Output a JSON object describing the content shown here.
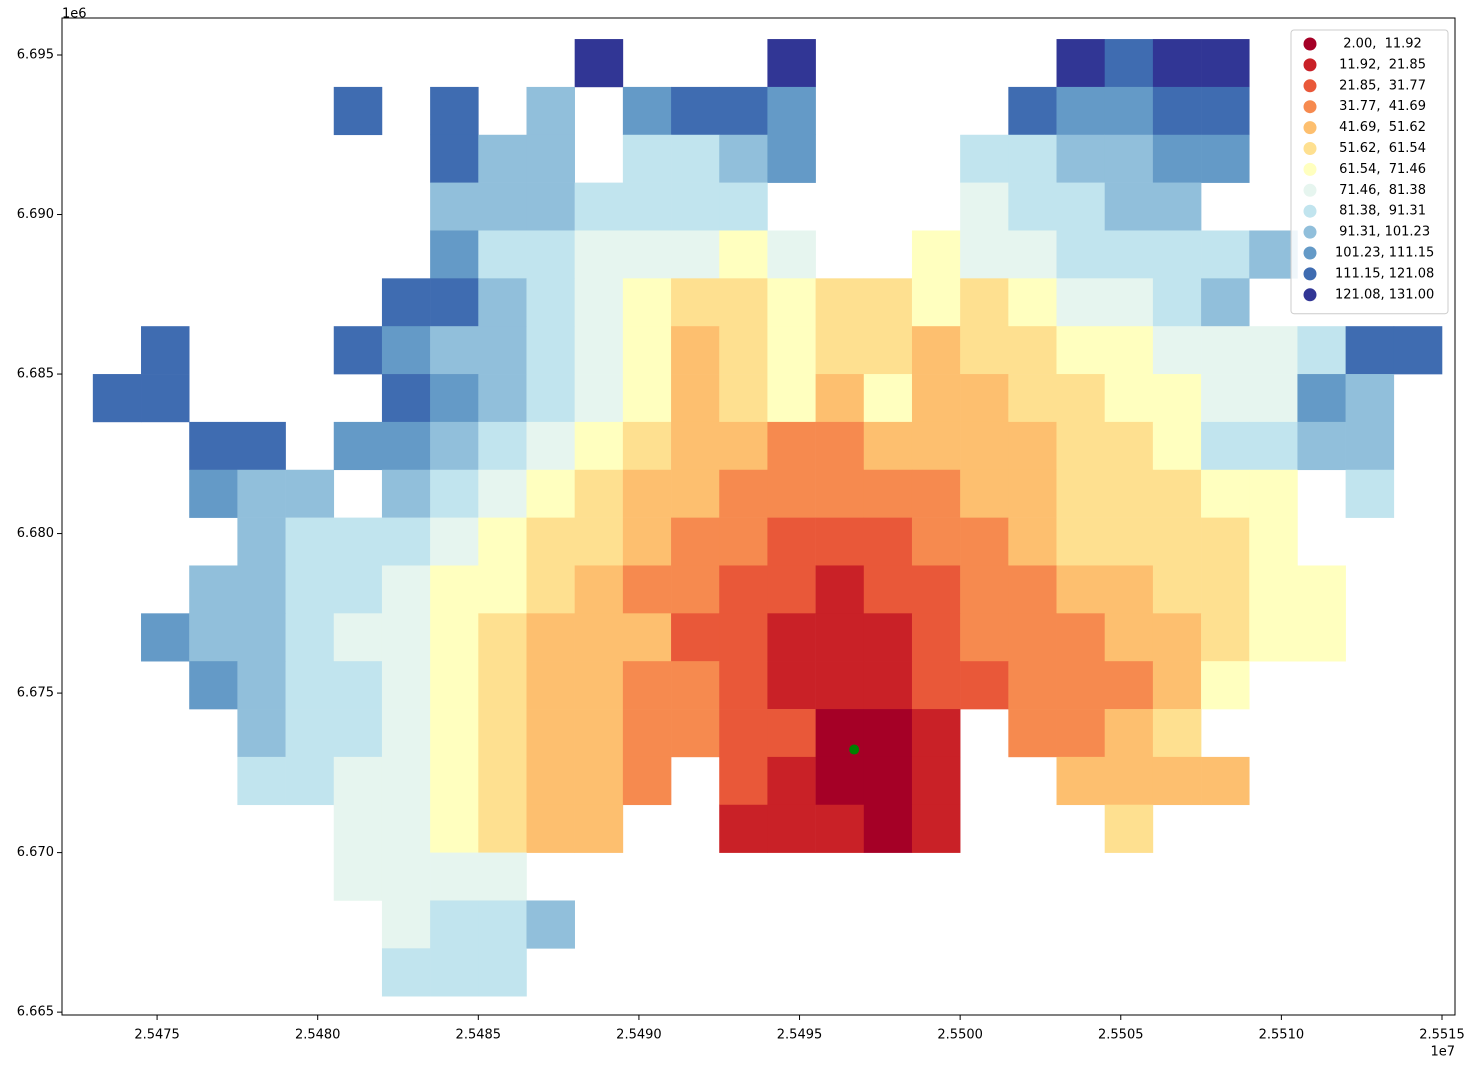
{
  "chart_data": {
    "type": "map",
    "xlim": [
      25472040,
      25515405
    ],
    "ylim": [
      6664910,
      6696160
    ],
    "xticks": [
      {
        "value": 25475000,
        "label": "2.5475"
      },
      {
        "value": 25480000,
        "label": "2.5480"
      },
      {
        "value": 25485000,
        "label": "2.5485"
      },
      {
        "value": 25490000,
        "label": "2.5490"
      },
      {
        "value": 25495000,
        "label": "2.5495"
      },
      {
        "value": 25500000,
        "label": "2.5500"
      },
      {
        "value": 25505000,
        "label": "2.5505"
      },
      {
        "value": 25510000,
        "label": "2.5510"
      },
      {
        "value": 25515000,
        "label": "2.5515"
      }
    ],
    "yticks": [
      {
        "value": 6665000,
        "label": "6.665"
      },
      {
        "value": 6670000,
        "label": "6.670"
      },
      {
        "value": 6675000,
        "label": "6.675"
      },
      {
        "value": 6680000,
        "label": "6.680"
      },
      {
        "value": 6685000,
        "label": "6.685"
      },
      {
        "value": 6690000,
        "label": "6.690"
      },
      {
        "value": 6695000,
        "label": "6.695"
      }
    ],
    "x_offset_label": "1e7",
    "y_offset_label": "1e6",
    "bins": [
      2.0,
      11.92,
      21.85,
      31.77,
      41.69,
      51.62,
      61.54,
      71.46,
      81.38,
      91.31,
      101.23,
      111.15,
      121.08,
      131.0
    ],
    "legend": [
      {
        "label": "  2.00,  11.92",
        "color": "#a50026"
      },
      {
        "label": " 11.92,  21.85",
        "color": "#c92127"
      },
      {
        "label": " 21.85,  31.77",
        "color": "#e95839"
      },
      {
        "label": " 31.77,  41.69",
        "color": "#f68a4f"
      },
      {
        "label": " 41.69,  51.62",
        "color": "#fdbf6f"
      },
      {
        "label": " 51.62,  61.54",
        "color": "#fee090"
      },
      {
        "label": " 61.54,  71.46",
        "color": "#ffffbf"
      },
      {
        "label": " 71.46,  81.38",
        "color": "#e6f5ef"
      },
      {
        "label": " 81.38,  91.31",
        "color": "#c1e4ee"
      },
      {
        "label": " 91.31, 101.23",
        "color": "#91bfdb"
      },
      {
        "label": "101.23, 111.15",
        "color": "#649ac7"
      },
      {
        "label": "111.15, 121.08",
        "color": "#3f6cb1"
      },
      {
        "label": "121.08, 131.00",
        "color": "#313695"
      }
    ],
    "legend_position": "upper right",
    "cell_x": [
      25473750,
      25475250,
      25476750,
      25478250,
      25479750,
      25481250,
      25482750,
      25484250,
      25485750,
      25487250,
      25488750,
      25490250,
      25491750,
      25493250,
      25494750,
      25496250,
      25497750,
      25499250,
      25500750,
      25502250,
      25503750,
      25505250,
      25506750,
      25508250,
      25509750,
      25511250,
      25512750,
      25514250
    ],
    "cell_y": [
      6694750,
      6693250,
      6691750,
      6690250,
      6688750,
      6687250,
      6685750,
      6684250,
      6682750,
      6681250,
      6679750,
      6678250,
      6676750,
      6675250,
      6673750,
      6672250,
      6670750,
      6669250,
      6667750,
      6666250
    ],
    "values": [
      [
        null,
        null,
        null,
        null,
        null,
        null,
        null,
        null,
        null,
        null,
        127,
        null,
        null,
        null,
        127,
        null,
        null,
        null,
        null,
        null,
        127,
        117,
        127,
        127,
        null,
        null,
        null,
        null
      ],
      [
        null,
        null,
        null,
        null,
        null,
        117,
        null,
        117,
        null,
        97,
        null,
        107,
        117,
        117,
        107,
        null,
        null,
        null,
        null,
        117,
        107,
        107,
        117,
        117,
        null,
        null,
        null,
        null
      ],
      [
        null,
        null,
        null,
        null,
        null,
        null,
        null,
        117,
        97,
        97,
        null,
        87,
        87,
        97,
        107,
        null,
        null,
        null,
        87,
        87,
        97,
        97,
        107,
        107,
        null,
        null,
        null,
        null
      ],
      [
        null,
        null,
        null,
        null,
        null,
        null,
        null,
        97,
        97,
        97,
        87,
        87,
        87,
        87,
        null,
        null,
        null,
        null,
        77,
        87,
        87,
        97,
        97,
        null,
        null,
        null,
        null,
        null
      ],
      [
        null,
        null,
        null,
        null,
        null,
        null,
        null,
        107,
        87,
        87,
        77,
        77,
        77,
        67,
        77,
        null,
        null,
        67,
        77,
        77,
        87,
        87,
        87,
        87,
        97,
        null,
        null,
        null
      ],
      [
        null,
        null,
        null,
        null,
        null,
        null,
        117,
        117,
        97,
        87,
        77,
        67,
        57,
        57,
        67,
        57,
        57,
        67,
        57,
        67,
        77,
        77,
        87,
        97,
        null,
        null,
        null,
        null
      ],
      [
        null,
        117,
        null,
        null,
        null,
        117,
        107,
        97,
        97,
        87,
        77,
        67,
        47,
        57,
        67,
        57,
        57,
        47,
        57,
        57,
        67,
        67,
        77,
        77,
        77,
        87,
        117,
        117
      ],
      [
        117,
        117,
        null,
        null,
        null,
        null,
        117,
        107,
        97,
        87,
        77,
        67,
        47,
        57,
        67,
        47,
        67,
        47,
        47,
        57,
        57,
        67,
        67,
        77,
        77,
        107,
        97,
        null
      ],
      [
        null,
        null,
        117,
        117,
        null,
        107,
        107,
        97,
        87,
        77,
        67,
        57,
        47,
        47,
        37,
        37,
        47,
        47,
        47,
        47,
        57,
        57,
        67,
        87,
        87,
        97,
        97,
        null
      ],
      [
        null,
        null,
        107,
        97,
        97,
        null,
        97,
        87,
        77,
        67,
        57,
        47,
        47,
        37,
        37,
        37,
        37,
        37,
        47,
        47,
        57,
        57,
        57,
        67,
        67,
        null,
        87,
        null
      ],
      [
        null,
        null,
        null,
        97,
        87,
        87,
        87,
        77,
        67,
        57,
        57,
        47,
        37,
        37,
        27,
        27,
        27,
        37,
        37,
        47,
        57,
        57,
        57,
        57,
        67,
        null,
        null,
        null
      ],
      [
        null,
        null,
        97,
        97,
        87,
        87,
        77,
        67,
        67,
        57,
        47,
        37,
        37,
        27,
        27,
        17,
        27,
        27,
        37,
        37,
        47,
        47,
        57,
        57,
        67,
        67,
        null,
        null
      ],
      [
        null,
        107,
        97,
        97,
        87,
        77,
        77,
        67,
        57,
        47,
        47,
        47,
        27,
        27,
        17,
        17,
        17,
        27,
        37,
        37,
        37,
        47,
        47,
        57,
        67,
        67,
        null,
        null
      ],
      [
        null,
        null,
        107,
        97,
        87,
        87,
        77,
        67,
        57,
        47,
        47,
        37,
        37,
        27,
        17,
        17,
        17,
        27,
        27,
        37,
        37,
        37,
        47,
        67,
        null,
        null,
        null,
        null
      ],
      [
        null,
        null,
        null,
        97,
        87,
        87,
        77,
        67,
        57,
        47,
        47,
        37,
        37,
        27,
        27,
        7,
        7,
        17,
        null,
        37,
        37,
        47,
        57,
        null,
        null,
        null,
        null,
        null
      ],
      [
        null,
        null,
        null,
        87,
        87,
        77,
        77,
        67,
        57,
        47,
        47,
        37,
        null,
        27,
        17,
        7,
        7,
        17,
        null,
        null,
        47,
        47,
        47,
        47,
        null,
        null,
        null,
        null
      ],
      [
        null,
        null,
        null,
        null,
        null,
        77,
        77,
        67,
        57,
        47,
        47,
        null,
        null,
        17,
        17,
        17,
        7,
        17,
        null,
        null,
        null,
        57,
        null,
        null,
        null,
        null,
        null,
        null
      ],
      [
        null,
        null,
        null,
        null,
        null,
        77,
        77,
        77,
        77,
        null,
        null,
        null,
        null,
        null,
        null,
        null,
        null,
        null,
        null,
        null,
        null,
        null,
        null,
        null,
        null,
        null,
        null,
        null
      ],
      [
        null,
        null,
        null,
        null,
        null,
        null,
        77,
        87,
        87,
        97,
        null,
        null,
        null,
        null,
        null,
        null,
        null,
        null,
        null,
        null,
        null,
        null,
        null,
        null,
        null,
        null,
        null,
        null
      ],
      [
        null,
        null,
        null,
        null,
        null,
        null,
        87,
        87,
        87,
        null,
        null,
        null,
        null,
        null,
        null,
        null,
        null,
        null,
        null,
        null,
        null,
        null,
        null,
        null,
        null,
        null,
        null,
        null
      ]
    ],
    "point": {
      "x": 25496700,
      "y": 6673230,
      "color": "green"
    }
  }
}
